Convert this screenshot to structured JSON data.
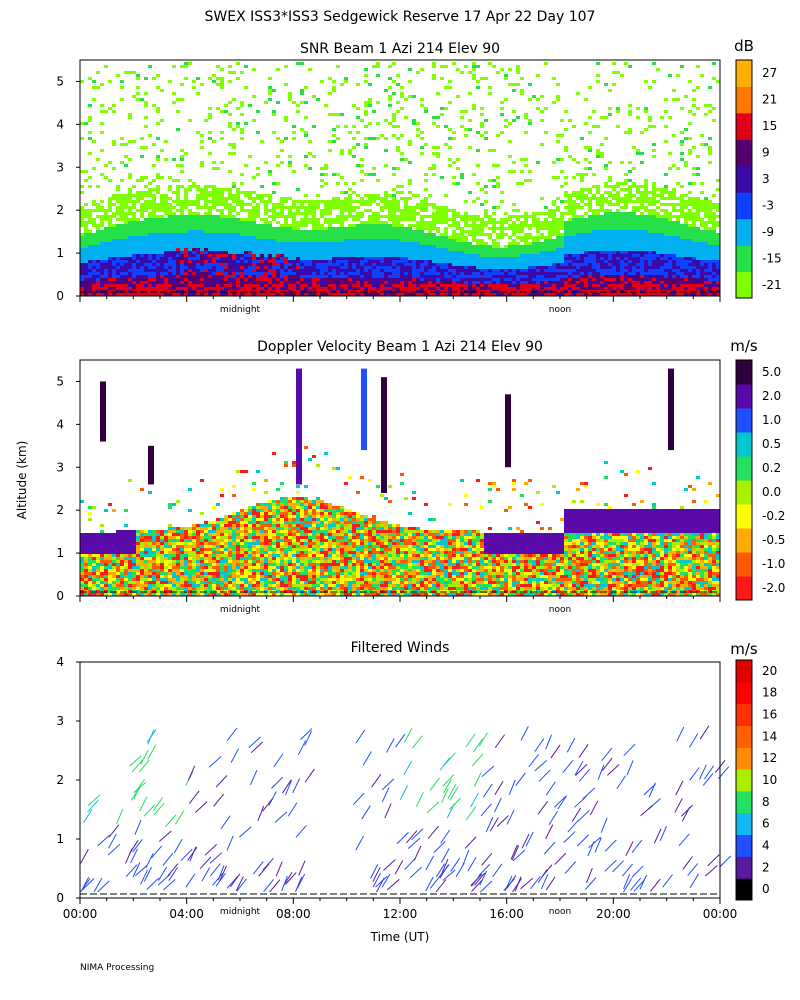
{
  "main_title": "SWEX ISS3*ISS3 Sedgewick Reserve  17 Apr 22 Day 107",
  "footer": "NIMA Processing",
  "y_axis_label": "Altitude (km)",
  "x_axis_label": "Time (UT)",
  "colors": {
    "snr": [
      "#80ff00",
      "#26e04a",
      "#00b0f0",
      "#1040ff",
      "#3a0aa8",
      "#55006e",
      "#e0001a",
      "#ff7a00",
      "#ffb000"
    ],
    "doppler": [
      "#ff1a1a",
      "#ff5a00",
      "#ffaa00",
      "#ffff00",
      "#a8f000",
      "#22e060",
      "#00c8d0",
      "#2050ff",
      "#5a0aa8",
      "#30003c"
    ],
    "winds": [
      "#000000",
      "#5a1aa0",
      "#2050ff",
      "#10b8f0",
      "#22e060",
      "#a8f000",
      "#ff8c00",
      "#ff6000",
      "#ff3000",
      "#ff0000",
      "#e00000"
    ]
  },
  "chart_data": [
    {
      "type": "heatmap",
      "title": "SNR Beam 1 Azi 214 Elev 90",
      "ylim": [
        0,
        5.5
      ],
      "y_ticks": [
        "0",
        "1",
        "2",
        "3",
        "4",
        "5"
      ],
      "x_markers": [
        "midnight",
        "noon"
      ],
      "colorbar": {
        "unit": "dB",
        "labels": [
          "-21",
          "-15",
          "-9",
          "-3",
          "3",
          "9",
          "15",
          "21",
          "27"
        ]
      },
      "layers": [
        {
          "altitude_top_km": 2.2,
          "level": "-21 dB"
        },
        {
          "altitude_top_km": 1.5,
          "level": "-9 dB"
        },
        {
          "altitude_top_km": 1.1,
          "level": "-3 dB"
        },
        {
          "altitude_top_km": 0.9,
          "level": "3 dB"
        }
      ]
    },
    {
      "type": "heatmap",
      "title": "Doppler Velocity Beam 1 Azi 214 Elev 90",
      "ylim": [
        0,
        5.5
      ],
      "y_ticks": [
        "0",
        "1",
        "2",
        "3",
        "4",
        "5"
      ],
      "x_markers": [
        "midnight",
        "noon"
      ],
      "colorbar": {
        "unit": "m/s",
        "labels": [
          "-2.0",
          "-1.0",
          "-0.5",
          "-0.2",
          "0.0",
          "0.2",
          "0.5",
          "1.0",
          "2.0",
          "5.0"
        ]
      }
    },
    {
      "type": "scatter",
      "title": "Filtered Winds",
      "ylim": [
        0,
        4
      ],
      "y_ticks": [
        "0",
        "1",
        "2",
        "3",
        "4"
      ],
      "x_ticks": [
        "00:00",
        "04:00",
        "08:00",
        "12:00",
        "16:00",
        "20:00",
        "00:00"
      ],
      "x_markers": [
        "midnight",
        "noon"
      ],
      "colorbar": {
        "unit": "m/s",
        "labels": [
          "0",
          "2",
          "4",
          "6",
          "8",
          "10",
          "12",
          "14",
          "16",
          "18",
          "20"
        ]
      }
    }
  ]
}
